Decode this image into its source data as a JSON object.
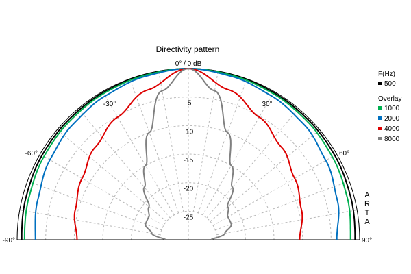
{
  "chart_data": {
    "type": "polar-half",
    "title": "Directivity pattern",
    "r_min_db": -30,
    "r_max_db": 0,
    "radial_ticks": [
      {
        "value": 0,
        "label": "0° / 0 dB"
      },
      {
        "value": -5,
        "label": "-5"
      },
      {
        "value": -10,
        "label": "-10"
      },
      {
        "value": -15,
        "label": "-15"
      },
      {
        "value": -20,
        "label": "-20"
      },
      {
        "value": -25,
        "label": "-25"
      }
    ],
    "angle_ticks": [
      {
        "angle": -90,
        "label": "-90°"
      },
      {
        "angle": -60,
        "label": "-60°"
      },
      {
        "angle": -30,
        "label": "-30°"
      },
      {
        "angle": 30,
        "label": "30°"
      },
      {
        "angle": 60,
        "label": "60°"
      },
      {
        "angle": 90,
        "label": "90°"
      }
    ],
    "legend": {
      "header": "F(Hz)",
      "subheader": "Overlay",
      "placement": "right"
    },
    "series": [
      {
        "name": "500",
        "color": "#000000",
        "angles": [
          -90,
          -75,
          -60,
          -45,
          -30,
          -15,
          0,
          15,
          30,
          45,
          60,
          75,
          90
        ],
        "db": [
          -0.8,
          -0.6,
          -0.4,
          -0.3,
          -0.2,
          -0.1,
          0,
          -0.1,
          -0.2,
          -0.3,
          -0.4,
          -0.6,
          -0.8
        ]
      },
      {
        "name": "1000",
        "color": "#00b050",
        "angles": [
          -90,
          -75,
          -60,
          -45,
          -30,
          -15,
          0,
          15,
          30,
          45,
          60,
          75,
          90
        ],
        "db": [
          -1.3,
          -1.1,
          -0.8,
          -0.6,
          -0.4,
          -0.2,
          0,
          -0.2,
          -0.4,
          -0.6,
          -0.9,
          -1.2,
          -1.6
        ]
      },
      {
        "name": "2000",
        "color": "#0070c0",
        "angles": [
          -90,
          -75,
          -60,
          -45,
          -30,
          -15,
          0,
          15,
          30,
          45,
          60,
          75,
          90
        ],
        "db": [
          -3.2,
          -2.7,
          -2.0,
          -1.4,
          -0.9,
          -0.4,
          0,
          -0.4,
          -0.9,
          -1.4,
          -2.2,
          -3.0,
          -4.0
        ]
      },
      {
        "name": "4000",
        "color": "#dd0000",
        "angles": [
          -90,
          -75,
          -60,
          -45,
          -30,
          -15,
          0,
          15,
          30,
          45,
          60,
          75,
          90
        ],
        "db": [
          -10.5,
          -9.5,
          -8.5,
          -7.0,
          -5.2,
          -2.8,
          0,
          -2.8,
          -5.2,
          -7.0,
          -8.5,
          -9.5,
          -10.5
        ]
      },
      {
        "name": "8000",
        "color": "#808080",
        "angles": [
          -90,
          -80,
          -70,
          -60,
          -50,
          -40,
          -30,
          -20,
          -10,
          0,
          10,
          20,
          30,
          40,
          50,
          60,
          70,
          80,
          90
        ],
        "db": [
          -26.0,
          -23.5,
          -22.0,
          -22.0,
          -21.0,
          -18.0,
          -15.0,
          -10.0,
          -3.5,
          0,
          -3.5,
          -10.0,
          -15.0,
          -18.0,
          -21.0,
          -22.0,
          -22.0,
          -23.5,
          -26.0
        ]
      }
    ],
    "grid": true
  },
  "brand": "ARTA"
}
